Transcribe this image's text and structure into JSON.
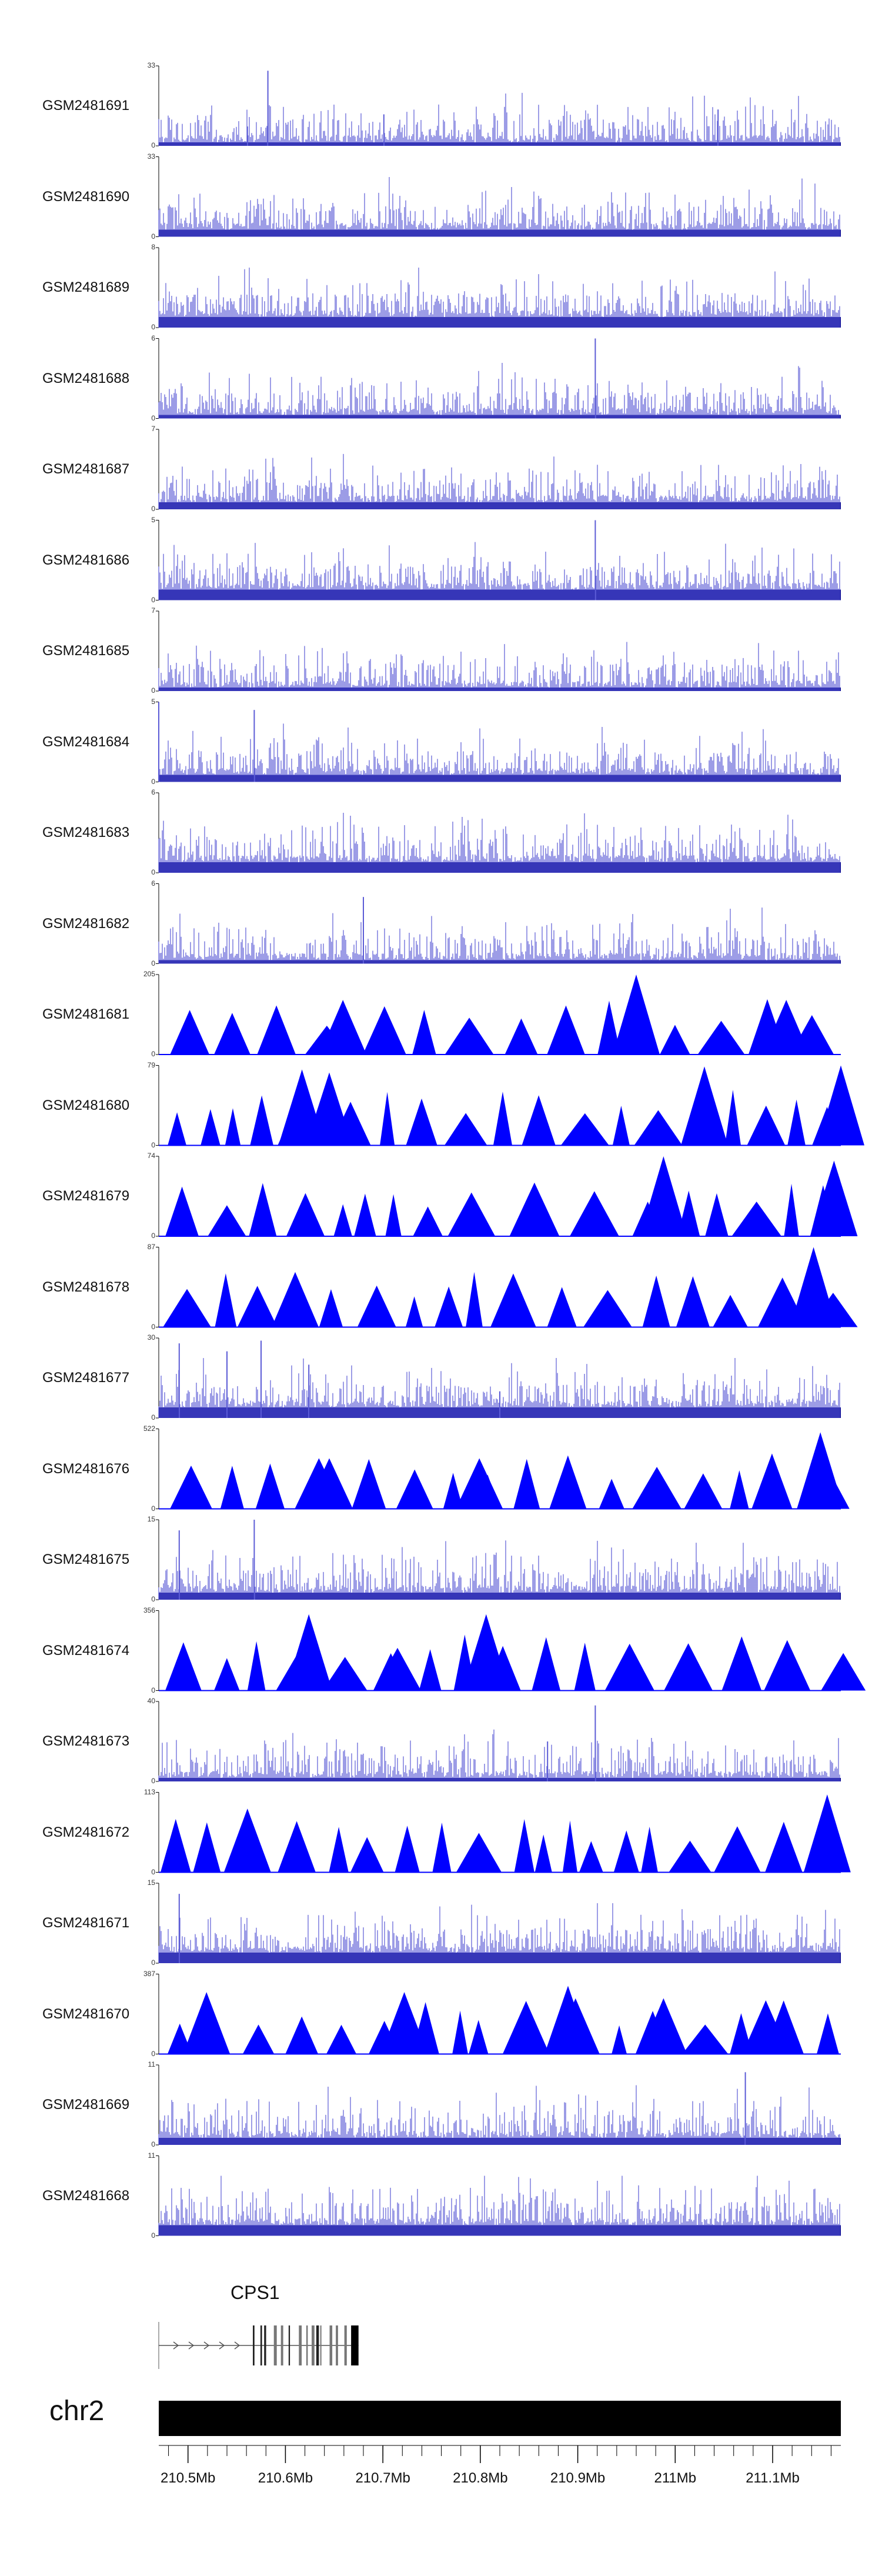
{
  "chart_data": {
    "type": "genome-browser",
    "chromosome": "chr2",
    "region_mb": [
      210.47,
      211.17
    ],
    "x_tick_labels": [
      "210.5Mb",
      "210.6Mb",
      "210.7Mb",
      "210.8Mb",
      "210.9Mb",
      "211Mb",
      "211.1Mb"
    ],
    "x_tick_values": [
      210.5,
      210.6,
      210.7,
      210.8,
      210.9,
      211.0,
      211.1
    ],
    "gene": {
      "name": "CPS1",
      "start_mb": 210.47,
      "end_mb": 210.675,
      "strand": "+"
    },
    "colors": {
      "coverage_dark": "#00008b",
      "coverage_light": "#5b5bd6",
      "peak_fill": "#0000ff",
      "axis": "#000000"
    },
    "tracks": [
      {
        "name": "GSM2481691",
        "ymin": 0,
        "ymax": 33,
        "style": "coverage",
        "spikes": [
          [
            0.13,
            8
          ],
          [
            0.16,
            31
          ],
          [
            0.33,
            13
          ],
          [
            0.82,
            15
          ]
        ]
      },
      {
        "name": "GSM2481690",
        "ymin": 0,
        "ymax": 33,
        "style": "coverage",
        "spikes": []
      },
      {
        "name": "GSM2481689",
        "ymin": 0,
        "ymax": 8,
        "style": "coverage",
        "spikes": []
      },
      {
        "name": "GSM2481688",
        "ymin": 0,
        "ymax": 6,
        "style": "coverage",
        "spikes": [
          [
            0.64,
            6
          ]
        ]
      },
      {
        "name": "GSM2481687",
        "ymin": 0,
        "ymax": 7,
        "style": "coverage",
        "spikes": []
      },
      {
        "name": "GSM2481686",
        "ymin": 0,
        "ymax": 5,
        "style": "coverage",
        "spikes": [
          [
            0.64,
            5
          ]
        ]
      },
      {
        "name": "GSM2481685",
        "ymin": 0,
        "ymax": 7,
        "style": "coverage",
        "spikes": []
      },
      {
        "name": "GSM2481684",
        "ymin": 0,
        "ymax": 5,
        "style": "coverage",
        "spikes": [
          [
            0.0,
            5
          ],
          [
            0.14,
            4.5
          ]
        ]
      },
      {
        "name": "GSM2481683",
        "ymin": 0,
        "ymax": 6,
        "style": "coverage",
        "spikes": []
      },
      {
        "name": "GSM2481682",
        "ymin": 0,
        "ymax": 6,
        "style": "coverage",
        "spikes": [
          [
            0.3,
            5
          ]
        ]
      },
      {
        "name": "GSM2481681",
        "ymin": 0,
        "ymax": 205,
        "style": "peaks",
        "spikes": [
          [
            0.27,
            140
          ],
          [
            0.7,
            205
          ],
          [
            0.92,
            140
          ]
        ]
      },
      {
        "name": "GSM2481680",
        "ymin": 0,
        "ymax": 79,
        "style": "peaks",
        "spikes": [
          [
            0.21,
            75
          ],
          [
            0.25,
            72
          ],
          [
            0.8,
            78
          ],
          [
            1.0,
            79
          ]
        ]
      },
      {
        "name": "GSM2481679",
        "ymin": 0,
        "ymax": 74,
        "style": "peaks",
        "spikes": [
          [
            0.74,
            74
          ],
          [
            0.99,
            70
          ]
        ]
      },
      {
        "name": "GSM2481678",
        "ymin": 0,
        "ymax": 87,
        "style": "peaks",
        "spikes": [
          [
            0.2,
            60
          ],
          [
            0.96,
            87
          ]
        ]
      },
      {
        "name": "GSM2481677",
        "ymin": 0,
        "ymax": 30,
        "style": "coverage",
        "spikes": [
          [
            0.03,
            28
          ],
          [
            0.1,
            25
          ],
          [
            0.15,
            29
          ],
          [
            0.22,
            20
          ],
          [
            0.5,
            10
          ]
        ]
      },
      {
        "name": "GSM2481676",
        "ymin": 0,
        "ymax": 522,
        "style": "peaks",
        "spikes": [
          [
            0.25,
            330
          ],
          [
            0.47,
            330
          ],
          [
            0.97,
            500
          ]
        ]
      },
      {
        "name": "GSM2481675",
        "ymin": 0,
        "ymax": 15,
        "style": "coverage",
        "spikes": [
          [
            0.03,
            13
          ],
          [
            0.14,
            15
          ]
        ]
      },
      {
        "name": "GSM2481674",
        "ymin": 0,
        "ymax": 356,
        "style": "peaks",
        "spikes": [
          [
            0.22,
            340
          ],
          [
            0.48,
            340
          ],
          [
            0.35,
            190
          ]
        ]
      },
      {
        "name": "GSM2481673",
        "ymin": 0,
        "ymax": 40,
        "style": "coverage",
        "spikes": [
          [
            0.64,
            38
          ],
          [
            0.57,
            20
          ]
        ]
      },
      {
        "name": "GSM2481672",
        "ymin": 0,
        "ymax": 113,
        "style": "peaks",
        "spikes": [
          [
            0.98,
            110
          ],
          [
            0.13,
            90
          ]
        ]
      },
      {
        "name": "GSM2481671",
        "ymin": 0,
        "ymax": 15,
        "style": "coverage",
        "spikes": [
          [
            0.03,
            13
          ]
        ]
      },
      {
        "name": "GSM2481670",
        "ymin": 0,
        "ymax": 387,
        "style": "peaks",
        "spikes": [
          [
            0.07,
            300
          ],
          [
            0.36,
            300
          ],
          [
            0.6,
            330
          ],
          [
            0.74,
            270
          ],
          [
            0.89,
            260
          ]
        ]
      },
      {
        "name": "GSM2481669",
        "ymin": 0,
        "ymax": 11,
        "style": "coverage",
        "spikes": [
          [
            0.86,
            10
          ]
        ]
      },
      {
        "name": "GSM2481668",
        "ymin": 0,
        "ymax": 11,
        "style": "coverage",
        "spikes": []
      }
    ]
  }
}
